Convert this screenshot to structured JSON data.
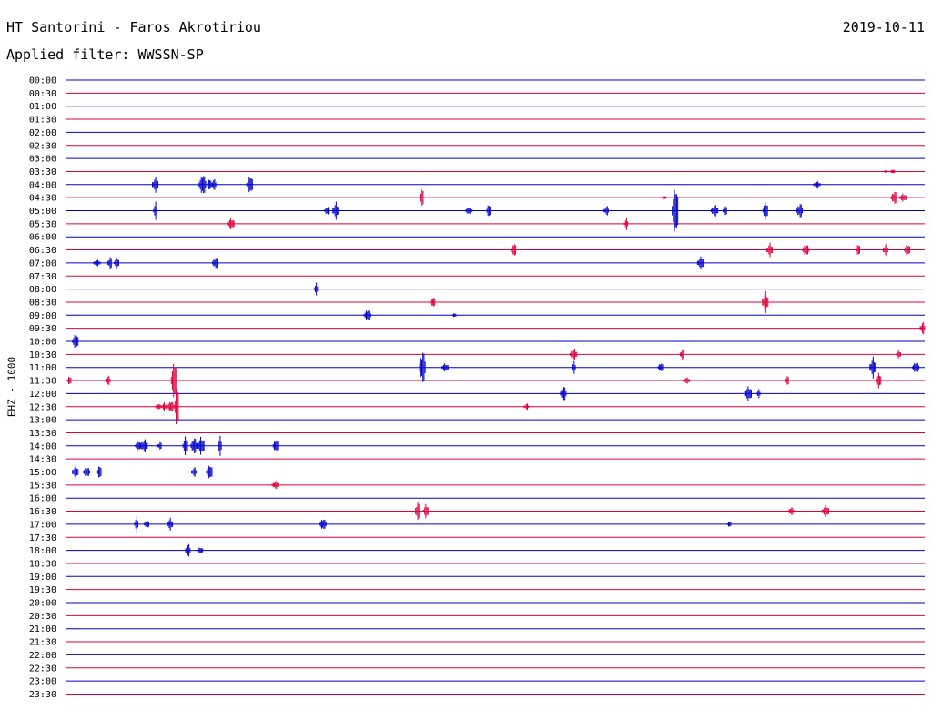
{
  "header": {
    "station": "HT Santorini - Faros Akrotiriou",
    "filter": "Applied filter: WWSSN-SP",
    "date": "2019-10-11"
  },
  "chart_data": {
    "type": "line",
    "ylabel": "EHZ - 1000",
    "trace_colors": [
      "#0000cc",
      "#e0003c"
    ],
    "rows": [
      "00:00",
      "00:30",
      "01:00",
      "01:30",
      "02:00",
      "02:30",
      "03:00",
      "03:30",
      "04:00",
      "04:30",
      "05:00",
      "05:30",
      "06:00",
      "06:30",
      "07:00",
      "07:30",
      "08:00",
      "08:30",
      "09:00",
      "09:30",
      "10:00",
      "10:30",
      "11:00",
      "11:30",
      "12:00",
      "12:30",
      "13:00",
      "13:30",
      "14:00",
      "14:30",
      "15:00",
      "15:30",
      "16:00",
      "16:30",
      "17:00",
      "17:30",
      "18:00",
      "18:30",
      "19:00",
      "19:30",
      "20:00",
      "20:30",
      "21:00",
      "21:30",
      "22:00",
      "22:30",
      "23:00",
      "23:30"
    ],
    "events": [
      {
        "row": 7,
        "t": 0.955,
        "a": 3
      },
      {
        "row": 7,
        "t": 0.963,
        "a": 3
      },
      {
        "row": 8,
        "t": 0.105,
        "a": 9
      },
      {
        "row": 8,
        "t": 0.16,
        "a": 13
      },
      {
        "row": 8,
        "t": 0.168,
        "a": 8
      },
      {
        "row": 8,
        "t": 0.173,
        "a": 7
      },
      {
        "row": 8,
        "t": 0.215,
        "a": 11
      },
      {
        "row": 8,
        "t": 0.875,
        "a": 4
      },
      {
        "row": 9,
        "t": 0.415,
        "a": 11
      },
      {
        "row": 9,
        "t": 0.697,
        "a": 3
      },
      {
        "row": 9,
        "t": 0.965,
        "a": 8
      },
      {
        "row": 9,
        "t": 0.975,
        "a": 5
      },
      {
        "row": 10,
        "t": 0.105,
        "a": 10
      },
      {
        "row": 10,
        "t": 0.305,
        "a": 6
      },
      {
        "row": 10,
        "t": 0.315,
        "a": 10
      },
      {
        "row": 10,
        "t": 0.47,
        "a": 5
      },
      {
        "row": 10,
        "t": 0.493,
        "a": 9
      },
      {
        "row": 10,
        "t": 0.63,
        "a": 6
      },
      {
        "row": 10,
        "t": 0.71,
        "a": 30
      },
      {
        "row": 10,
        "t": 0.756,
        "a": 7
      },
      {
        "row": 10,
        "t": 0.768,
        "a": 6
      },
      {
        "row": 10,
        "t": 0.815,
        "a": 12
      },
      {
        "row": 10,
        "t": 0.855,
        "a": 9
      },
      {
        "row": 11,
        "t": 0.193,
        "a": 7
      },
      {
        "row": 11,
        "t": 0.653,
        "a": 7
      },
      {
        "row": 13,
        "t": 0.522,
        "a": 9
      },
      {
        "row": 13,
        "t": 0.82,
        "a": 8
      },
      {
        "row": 13,
        "t": 0.862,
        "a": 7
      },
      {
        "row": 13,
        "t": 0.923,
        "a": 8
      },
      {
        "row": 13,
        "t": 0.955,
        "a": 8
      },
      {
        "row": 13,
        "t": 0.98,
        "a": 7
      },
      {
        "row": 14,
        "t": 0.037,
        "a": 4
      },
      {
        "row": 14,
        "t": 0.052,
        "a": 8
      },
      {
        "row": 14,
        "t": 0.06,
        "a": 7
      },
      {
        "row": 14,
        "t": 0.175,
        "a": 7
      },
      {
        "row": 14,
        "t": 0.74,
        "a": 8
      },
      {
        "row": 16,
        "t": 0.292,
        "a": 7
      },
      {
        "row": 17,
        "t": 0.428,
        "a": 7
      },
      {
        "row": 17,
        "t": 0.815,
        "a": 12
      },
      {
        "row": 18,
        "t": 0.352,
        "a": 7
      },
      {
        "row": 18,
        "t": 0.453,
        "a": 3
      },
      {
        "row": 19,
        "t": 0.998,
        "a": 8
      },
      {
        "row": 20,
        "t": 0.012,
        "a": 9
      },
      {
        "row": 21,
        "t": 0.592,
        "a": 7
      },
      {
        "row": 21,
        "t": 0.718,
        "a": 7
      },
      {
        "row": 21,
        "t": 0.97,
        "a": 5
      },
      {
        "row": 22,
        "t": 0.416,
        "a": 20
      },
      {
        "row": 22,
        "t": 0.442,
        "a": 5
      },
      {
        "row": 22,
        "t": 0.592,
        "a": 7
      },
      {
        "row": 22,
        "t": 0.693,
        "a": 6
      },
      {
        "row": 22,
        "t": 0.94,
        "a": 12
      },
      {
        "row": 22,
        "t": 0.99,
        "a": 7
      },
      {
        "row": 23,
        "t": 0.005,
        "a": 6
      },
      {
        "row": 23,
        "t": 0.05,
        "a": 6
      },
      {
        "row": 23,
        "t": 0.127,
        "a": 24
      },
      {
        "row": 23,
        "t": 0.723,
        "a": 4
      },
      {
        "row": 23,
        "t": 0.84,
        "a": 6
      },
      {
        "row": 23,
        "t": 0.947,
        "a": 10
      },
      {
        "row": 24,
        "t": 0.58,
        "a": 9
      },
      {
        "row": 24,
        "t": 0.795,
        "a": 9
      },
      {
        "row": 24,
        "t": 0.807,
        "a": 5
      },
      {
        "row": 25,
        "t": 0.108,
        "a": 4
      },
      {
        "row": 25,
        "t": 0.115,
        "a": 5
      },
      {
        "row": 25,
        "t": 0.123,
        "a": 7
      },
      {
        "row": 25,
        "t": 0.13,
        "a": 30
      },
      {
        "row": 25,
        "t": 0.537,
        "a": 4
      },
      {
        "row": 28,
        "t": 0.085,
        "a": 6
      },
      {
        "row": 28,
        "t": 0.092,
        "a": 8
      },
      {
        "row": 28,
        "t": 0.11,
        "a": 5
      },
      {
        "row": 28,
        "t": 0.14,
        "a": 12
      },
      {
        "row": 28,
        "t": 0.15,
        "a": 10
      },
      {
        "row": 28,
        "t": 0.158,
        "a": 11
      },
      {
        "row": 28,
        "t": 0.18,
        "a": 11
      },
      {
        "row": 28,
        "t": 0.245,
        "a": 8
      },
      {
        "row": 30,
        "t": 0.012,
        "a": 8
      },
      {
        "row": 30,
        "t": 0.025,
        "a": 6
      },
      {
        "row": 30,
        "t": 0.04,
        "a": 9
      },
      {
        "row": 30,
        "t": 0.15,
        "a": 6
      },
      {
        "row": 30,
        "t": 0.168,
        "a": 9
      },
      {
        "row": 31,
        "t": 0.245,
        "a": 5
      },
      {
        "row": 33,
        "t": 0.41,
        "a": 12
      },
      {
        "row": 33,
        "t": 0.42,
        "a": 9
      },
      {
        "row": 33,
        "t": 0.845,
        "a": 5
      },
      {
        "row": 33,
        "t": 0.885,
        "a": 7
      },
      {
        "row": 34,
        "t": 0.083,
        "a": 9
      },
      {
        "row": 34,
        "t": 0.095,
        "a": 5
      },
      {
        "row": 34,
        "t": 0.122,
        "a": 7
      },
      {
        "row": 34,
        "t": 0.3,
        "a": 7
      },
      {
        "row": 34,
        "t": 0.773,
        "a": 4
      },
      {
        "row": 36,
        "t": 0.143,
        "a": 8
      },
      {
        "row": 36,
        "t": 0.157,
        "a": 4
      }
    ]
  }
}
